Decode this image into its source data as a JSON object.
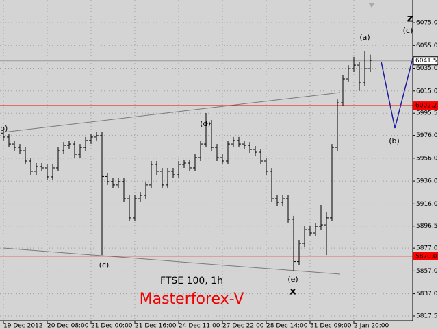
{
  "chart_data": {
    "type": "ohlc",
    "title": "FTSE 100, 1h",
    "subtitle": "Masterforex-V",
    "color": "#000000",
    "grid": true,
    "xlim": [
      -0.625,
      74.75
    ],
    "ylim": [
      5813.3,
      6094.9
    ],
    "xticks": [
      {
        "value": 0,
        "label": "19 Dec 2012"
      },
      {
        "value": 8,
        "label": "20 Dec 08:00"
      },
      {
        "value": 16,
        "label": "21 Dec 00:00"
      },
      {
        "value": 24,
        "label": "21 Dec 16:00"
      },
      {
        "value": 32,
        "label": "24 Dec 11:00"
      },
      {
        "value": 40,
        "label": "27 Dec 22:00"
      },
      {
        "value": 48,
        "label": "28 Dec 14:00"
      },
      {
        "value": 56,
        "label": "31 Dec 09:00"
      },
      {
        "value": 64,
        "label": "2 Jan 20:00"
      }
    ],
    "yticks": [
      {
        "value": 6075,
        "label": "6075.0"
      },
      {
        "value": 6055,
        "label": "6055.0"
      },
      {
        "value": 6035,
        "label": "6035.0"
      },
      {
        "value": 6015,
        "label": "6015.0"
      },
      5995.5,
      {
        "value": 5976,
        "label": "5976.0"
      },
      {
        "value": 5956,
        "label": "5956.0"
      },
      {
        "value": 5936,
        "label": "5936.0"
      },
      {
        "value": 5916,
        "label": "5916.0"
      },
      5896.5,
      {
        "value": 5877,
        "label": "5877.0"
      },
      {
        "value": 5857,
        "label": "5857.0"
      },
      {
        "value": 5837,
        "label": "5837.0"
      },
      5817.5
    ],
    "levels": [
      {
        "value": 6041.5,
        "color": "#999999"
      },
      {
        "value": 6002.2,
        "color": "#ff0000"
      },
      {
        "value": 5870,
        "label": "5870.0",
        "color": "#ff0000"
      }
    ],
    "annotations": [
      "b)",
      "(d)",
      "(c)",
      "(e)",
      "x",
      "(a)",
      "(b)",
      "z",
      "(c)"
    ],
    "open": [
      5978,
      5974.6,
      5968.5,
      5965.5,
      5962.5,
      5953.5,
      5944.5,
      5948.7,
      5947.5,
      5939.7,
      5947.5,
      5962.5,
      5967.3,
      5968.5,
      5959.5,
      5965.5,
      5971.6,
      5974.6,
      5975.8,
      5940,
      5935.5,
      5932.5,
      5935.5,
      5920.4,
      5903.6,
      5920.4,
      5923.4,
      5932.5,
      5950.5,
      5944.5,
      5932.5,
      5944.5,
      5941.5,
      5950.5,
      5951.7,
      5947.5,
      5956.5,
      5968.5,
      5986.6,
      5965.5,
      5956.5,
      5953.5,
      5968.5,
      5971.6,
      5968.5,
      5967.3,
      5963.7,
      5961.3,
      5953.5,
      5944.5,
      5920.4,
      5917.4,
      5920.4,
      5902.4,
      5865.3,
      5881.3,
      5893.3,
      5890.3,
      5896.3,
      5897.5,
      5903.6,
      5965.5,
      6004.6,
      6025.7,
      6034.7,
      6037.7,
      6022.7,
      6034.7
    ],
    "high": [
      5981,
      5977.6,
      5971.5,
      5968.5,
      5965.5,
      5956.5,
      5951.7,
      5951.7,
      5950.5,
      5950.5,
      5965.5,
      5970.3,
      5971.5,
      5971.5,
      5968.5,
      5974.6,
      5977.6,
      5978.8,
      5978.8,
      5943,
      5938.5,
      5938.5,
      5938.5,
      5923.4,
      5923.4,
      5926.4,
      5935.5,
      5953.5,
      5953.5,
      5947.5,
      5947.5,
      5947.5,
      5953.5,
      5954.7,
      5954.7,
      5959.5,
      5971.5,
      5995.6,
      5989.6,
      5968.5,
      5959.5,
      5971.5,
      5974.6,
      5974.6,
      5971.5,
      5970.3,
      5966.7,
      5964.3,
      5956.5,
      5947.5,
      5923.4,
      5923.4,
      5923.4,
      5905.4,
      5884.3,
      5896.3,
      5896.3,
      5899.3,
      5915,
      5909,
      5968.5,
      6007.6,
      6028.7,
      6037.7,
      6045,
      6040.7,
      6049.8,
      6047
    ],
    "low": [
      5971.6,
      5965.5,
      5962.5,
      5959.5,
      5950.5,
      5941.5,
      5941.5,
      5944.5,
      5936.7,
      5936.7,
      5944.5,
      5959.5,
      5964.3,
      5956.5,
      5956.5,
      5962.5,
      5968.6,
      5971.6,
      5871,
      5932.5,
      5929.5,
      5929.5,
      5917.4,
      5900.6,
      5900.6,
      5917.4,
      5920.4,
      5929.5,
      5941.5,
      5929.5,
      5929.5,
      5938.5,
      5938.5,
      5947.5,
      5944.5,
      5944.5,
      5953.5,
      5965.5,
      5962.5,
      5953.5,
      5950.5,
      5950.5,
      5965.5,
      5965.5,
      5964.3,
      5960.7,
      5958.3,
      5950.5,
      5941.5,
      5917.4,
      5914.4,
      5914.4,
      5899.4,
      5857.2,
      5862.3,
      5878.3,
      5887.3,
      5887.3,
      5893.3,
      5871,
      5900.6,
      5962.5,
      6001.6,
      6022.7,
      6031.7,
      6015,
      6019.7,
      6031.7
    ],
    "close": [
      5974.6,
      5968.5,
      5965.5,
      5962.5,
      5953.5,
      5944.5,
      5948.7,
      5947.5,
      5939.7,
      5947.5,
      5962.5,
      5967.3,
      5968.5,
      5959.5,
      5965.5,
      5971.6,
      5974.6,
      5975.8,
      5940,
      5935.5,
      5932.5,
      5935.5,
      5920.4,
      5903.6,
      5920.4,
      5923.4,
      5932.5,
      5950.5,
      5944.5,
      5932.5,
      5944.5,
      5941.5,
      5950.5,
      5951.7,
      5947.5,
      5956.5,
      5968.5,
      5986.6,
      5965.5,
      5956.5,
      5953.5,
      5968.5,
      5971.6,
      5968.5,
      5967.3,
      5963.7,
      5961.3,
      5953.5,
      5944.5,
      5920.4,
      5917.4,
      5920.4,
      5902.4,
      5865.3,
      5881.3,
      5893.3,
      5890.3,
      5896.3,
      5897.5,
      5903.6,
      5965.5,
      6004.6,
      6025.7,
      6034.7,
      6037.7,
      6022.7,
      6034.7,
      6042
    ]
  }
}
